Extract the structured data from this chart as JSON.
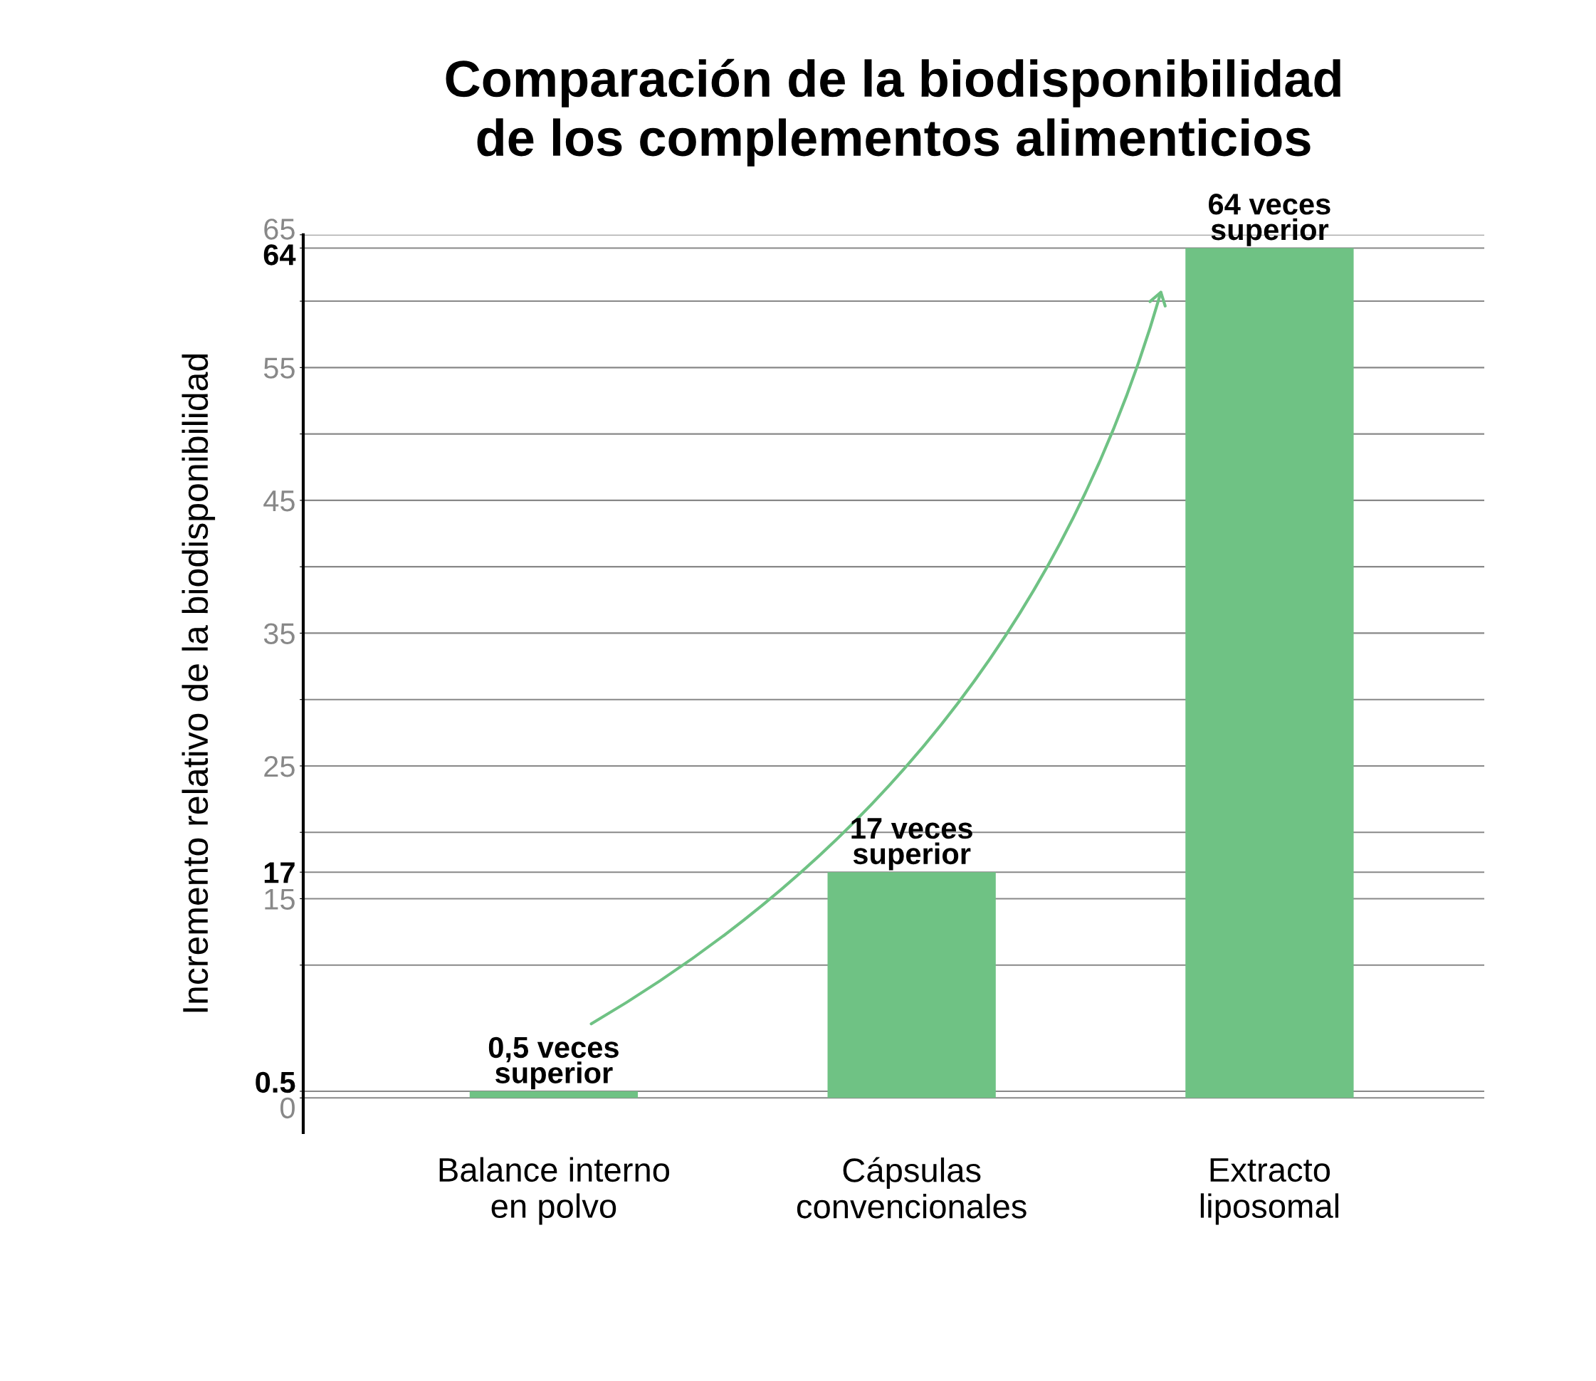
{
  "chart_data": {
    "type": "bar",
    "title": "Comparación de la biodisponibilidad\nde los complementos alimenticios",
    "ylabel": "Incremento relativo de la biodisponibilidad",
    "categories": [
      "Balance interno\nen polvo",
      "Cápsulas\nconvencionales",
      "Extracto\nliposomal"
    ],
    "values": [
      0.5,
      17,
      64
    ],
    "color": "#6fc284",
    "value_labels": [
      "0,5 veces\nsuperior",
      "17 veces\nsuperior",
      "64 veces\nsuperior"
    ],
    "ylim": [
      -2.6,
      65
    ],
    "yticks": [
      0,
      0.5,
      {
        "value": 10,
        "label": null
      },
      15,
      17,
      {
        "value": 20,
        "label": null
      },
      25,
      {
        "value": 30,
        "label": null
      },
      35,
      {
        "value": 40,
        "label": null
      },
      45,
      {
        "value": 50,
        "label": null
      },
      55,
      {
        "value": 60,
        "label": null
      },
      64,
      65
    ],
    "grid": "y"
  }
}
